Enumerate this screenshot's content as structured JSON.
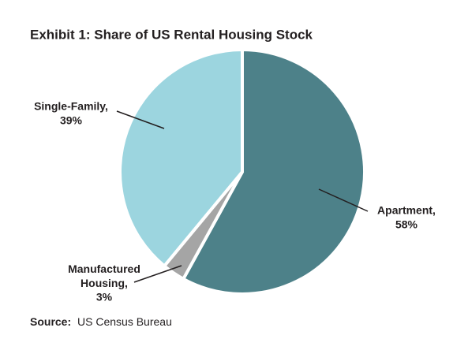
{
  "chart_data": {
    "type": "pie",
    "title": "Exhibit 1: Share of US Rental Housing Stock",
    "categories": [
      "Apartment,",
      "Manufactured Housing,",
      "Single-Family,"
    ],
    "values": [
      58,
      3,
      39
    ],
    "value_labels": [
      "58%",
      "3%",
      "39%"
    ],
    "colors": [
      "#4d8189",
      "#a5a5a5",
      "#9cd5df"
    ],
    "source_label": "Source:",
    "source": "US Census Bureau"
  }
}
